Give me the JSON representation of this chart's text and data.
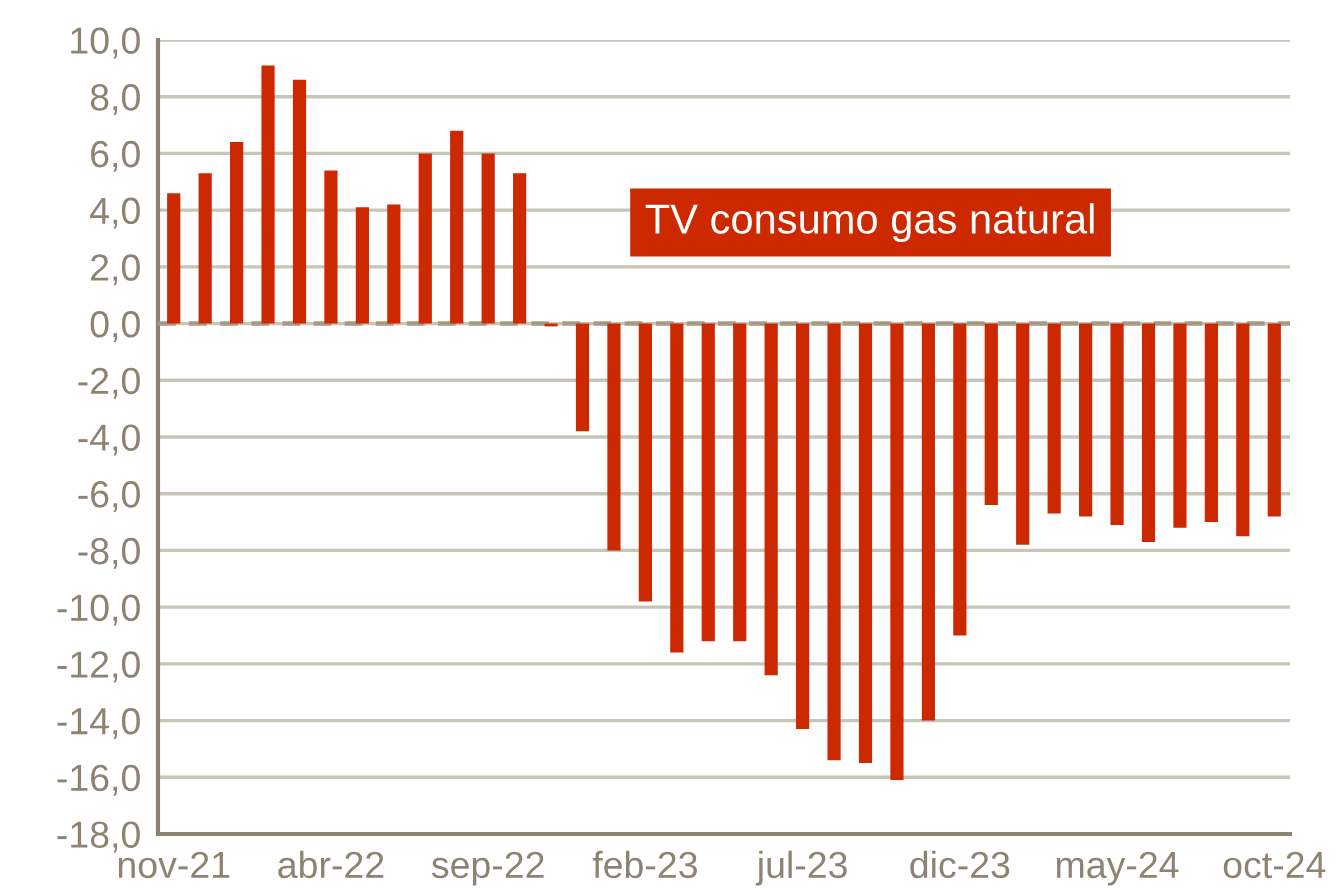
{
  "chart_data": {
    "type": "bar",
    "categories": [
      "nov-21",
      null,
      null,
      null,
      null,
      "abr-22",
      null,
      null,
      null,
      null,
      "sep-22",
      null,
      null,
      null,
      null,
      "feb-23",
      null,
      null,
      null,
      null,
      "jul-23",
      null,
      null,
      null,
      null,
      "dic-23",
      null,
      null,
      null,
      null,
      "may-24",
      null,
      null,
      null,
      null,
      "oct-24"
    ],
    "values": [
      4.6,
      5.3,
      6.4,
      9.1,
      8.6,
      5.4,
      4.1,
      4.2,
      6.0,
      6.8,
      6.0,
      5.3,
      -0.1,
      -3.8,
      -8.0,
      -9.8,
      -11.6,
      -11.2,
      -11.2,
      -12.4,
      -14.3,
      -15.4,
      -15.5,
      -16.1,
      -14.0,
      -11.0,
      -6.4,
      -7.8,
      -6.7,
      -6.8,
      -7.1,
      -7.7,
      -7.2,
      -7.0,
      -7.5,
      -6.8
    ],
    "color": "#cc2900",
    "ylim": [
      -18,
      10
    ],
    "yticks": [
      {
        "value": -18,
        "label": "-18,0"
      },
      {
        "value": -16,
        "label": "-16,0"
      },
      {
        "value": -14,
        "label": "-14,0"
      },
      {
        "value": -12,
        "label": "-12,0"
      },
      {
        "value": -10,
        "label": "-10,0"
      },
      {
        "value": -8,
        "label": "-8,0"
      },
      {
        "value": -6,
        "label": "-6,0"
      },
      {
        "value": -4,
        "label": "-4,0"
      },
      {
        "value": -2,
        "label": "-2,0"
      },
      {
        "value": 0,
        "label": "0,0"
      },
      {
        "value": 2,
        "label": "2,0"
      },
      {
        "value": 4,
        "label": "4,0"
      },
      {
        "value": 6,
        "label": "6,0"
      },
      {
        "value": 8,
        "label": "8,0"
      },
      {
        "value": 10,
        "label": "10,0"
      }
    ],
    "grid": "y",
    "ref_lines": [
      {
        "axis": "y",
        "value": 0,
        "label": null,
        "color": "#a89a84",
        "line_style": "dashed"
      }
    ],
    "annotations": [
      "TV consumo gas natural"
    ]
  }
}
